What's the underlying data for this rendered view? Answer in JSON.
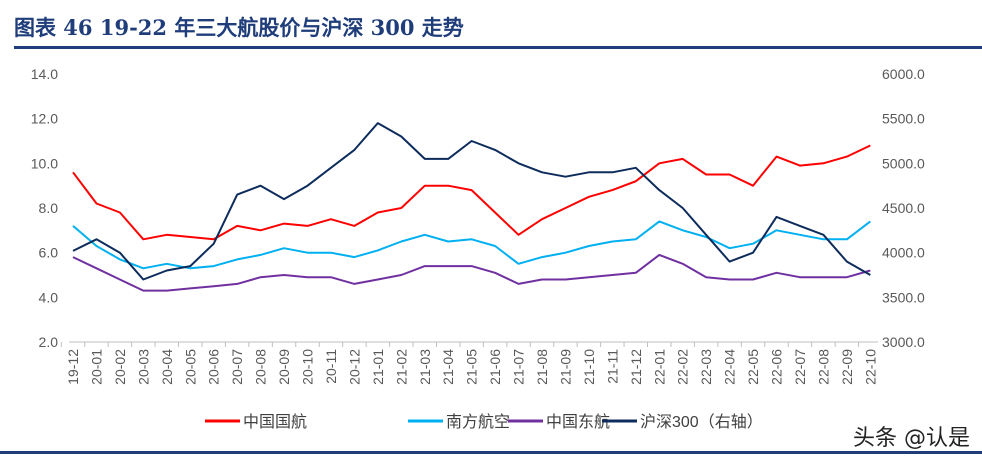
{
  "title": "图表 46    19-22 年三大航股价与沪深 300 走势",
  "watermark": "头条 @认是",
  "chart_data": {
    "type": "line",
    "title": "19-22 年三大航股价与沪深 300 走势",
    "categories": [
      "19-12",
      "20-01",
      "20-02",
      "20-03",
      "20-04",
      "20-05",
      "20-06",
      "20-07",
      "20-08",
      "20-09",
      "20-10",
      "20-11",
      "20-12",
      "21-01",
      "21-02",
      "21-03",
      "21-04",
      "21-05",
      "21-06",
      "21-07",
      "21-08",
      "21-09",
      "21-10",
      "21-11",
      "21-12",
      "22-01",
      "22-02",
      "22-03",
      "22-04",
      "22-05",
      "22-06",
      "22-07",
      "22-08",
      "22-09",
      "22-10"
    ],
    "left_axis": {
      "ylim": [
        2,
        14
      ],
      "ticks": [
        "2.0",
        "4.0",
        "6.0",
        "8.0",
        "10.0",
        "12.0",
        "14.0"
      ]
    },
    "right_axis": {
      "ylim": [
        3000,
        6000
      ],
      "ticks": [
        "3000.0",
        "3500.0",
        "4000.0",
        "4500.0",
        "5000.0",
        "5500.0",
        "6000.0"
      ]
    },
    "grid": false,
    "legend_position": "bottom",
    "series": [
      {
        "name": "中国国航",
        "axis": "left",
        "color": "#ff0000",
        "values": [
          9.6,
          8.2,
          7.8,
          6.6,
          6.8,
          6.7,
          6.6,
          7.2,
          7.0,
          7.3,
          7.2,
          7.5,
          7.2,
          7.8,
          8.0,
          9.0,
          9.0,
          8.8,
          7.8,
          6.8,
          7.5,
          8.0,
          8.5,
          8.8,
          9.2,
          10.0,
          10.2,
          9.5,
          9.5,
          9.0,
          10.3,
          9.9,
          10.0,
          10.3,
          10.8
        ]
      },
      {
        "name": "南方航空",
        "axis": "left",
        "color": "#00b0f0",
        "values": [
          7.2,
          6.3,
          5.7,
          5.3,
          5.5,
          5.3,
          5.4,
          5.7,
          5.9,
          6.2,
          6.0,
          6.0,
          5.8,
          6.1,
          6.5,
          6.8,
          6.5,
          6.6,
          6.3,
          5.5,
          5.8,
          6.0,
          6.3,
          6.5,
          6.6,
          7.4,
          7.0,
          6.7,
          6.2,
          6.4,
          7.0,
          6.8,
          6.6,
          6.6,
          7.4
        ]
      },
      {
        "name": "中国东航",
        "axis": "left",
        "color": "#7030a0",
        "values": [
          5.8,
          5.3,
          4.8,
          4.3,
          4.3,
          4.4,
          4.5,
          4.6,
          4.9,
          5.0,
          4.9,
          4.9,
          4.6,
          4.8,
          5.0,
          5.4,
          5.4,
          5.4,
          5.1,
          4.6,
          4.8,
          4.8,
          4.9,
          5.0,
          5.1,
          5.9,
          5.5,
          4.9,
          4.8,
          4.8,
          5.1,
          4.9,
          4.9,
          4.9,
          5.2
        ]
      },
      {
        "name": "沪深300（右轴）",
        "axis": "right",
        "color": "#0d2c5c",
        "values": [
          4020,
          4150,
          4000,
          3700,
          3800,
          3850,
          4100,
          4650,
          4750,
          4600,
          4750,
          4950,
          5150,
          5450,
          5300,
          5050,
          5050,
          5250,
          5150,
          5000,
          4900,
          4850,
          4900,
          4900,
          4950,
          4700,
          4500,
          4200,
          3900,
          4000,
          4400,
          4300,
          4200,
          3900,
          3750
        ]
      }
    ]
  }
}
